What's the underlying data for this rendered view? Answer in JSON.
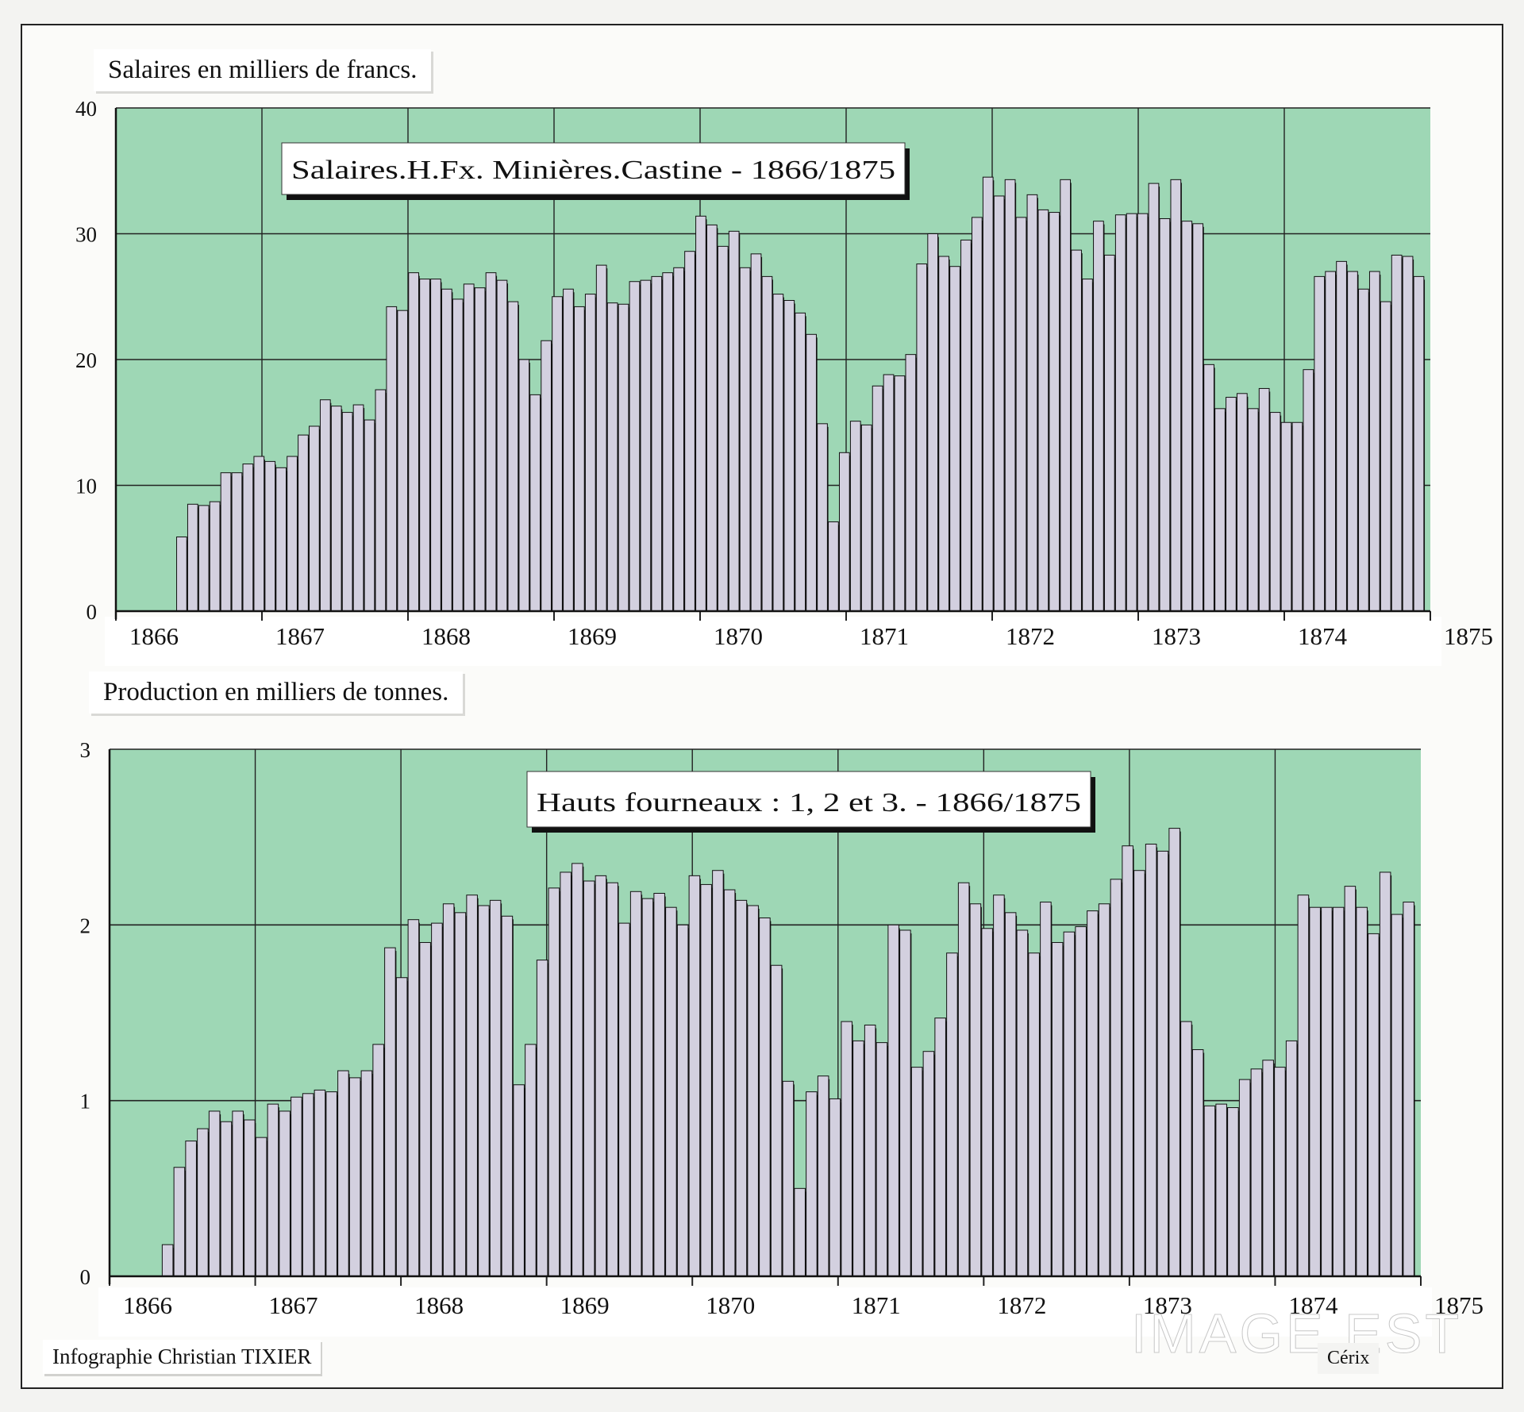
{
  "colors": {
    "plot_bg": "#9ed7b5",
    "bar_fill": "#d3d0df",
    "bar_stroke": "#111111",
    "grid": "#222222"
  },
  "footer": {
    "credit": "Infographie Christian TIXIER",
    "watermark": "IMAGE EST",
    "corner_text": "Cérix"
  },
  "chart_data": [
    {
      "type": "bar",
      "panel_title": "Salaires en milliers de francs.",
      "title": "Salaires.H.Fx. Minières.Castine - 1866/1875",
      "ylabel": "Salaires en milliers de francs.",
      "ylim": [
        0,
        40
      ],
      "yticks": [
        0,
        10,
        20,
        30,
        40
      ],
      "xticks": [
        "1866",
        "1867",
        "1868",
        "1869",
        "1870",
        "1871",
        "1872",
        "1873",
        "1874",
        "1875"
      ],
      "x_start": "1866-01",
      "frequency": "monthly",
      "grid": true,
      "values": [
        0,
        0,
        0,
        0,
        0,
        5.9,
        8.5,
        8.4,
        8.7,
        11,
        11,
        11.7,
        12.3,
        11.9,
        11.4,
        12.3,
        14,
        14.7,
        16.8,
        16.3,
        15.8,
        16.4,
        15.2,
        17.6,
        24.2,
        23.9,
        26.9,
        26.4,
        26.4,
        25.6,
        24.8,
        26,
        25.7,
        26.9,
        26.3,
        24.6,
        20,
        17.2,
        21.5,
        25,
        25.6,
        24.2,
        25.2,
        27.5,
        24.5,
        24.4,
        26.2,
        26.3,
        26.6,
        26.9,
        27.3,
        28.6,
        31.4,
        30.7,
        29,
        30.2,
        27.3,
        28.4,
        26.6,
        25.2,
        24.7,
        23.7,
        22,
        14.9,
        7.1,
        12.6,
        15.1,
        14.8,
        17.9,
        18.8,
        18.7,
        20.4,
        27.6,
        30,
        28.2,
        27.4,
        29.5,
        31.3,
        34.5,
        33,
        34.3,
        31.3,
        33.1,
        31.9,
        31.7,
        34.3,
        28.7,
        26.4,
        31,
        28.3,
        31.5,
        31.6,
        31.6,
        34,
        31.2,
        34.3,
        31,
        30.8,
        19.6,
        16.1,
        17,
        17.3,
        16.1,
        17.7,
        15.8,
        15,
        15,
        19.2,
        26.6,
        27,
        27.8,
        27,
        25.6,
        27,
        24.6,
        28.3,
        28.2,
        26.6
      ]
    },
    {
      "type": "bar",
      "panel_title": "Production en milliers de tonnes.",
      "title": "Hauts fourneaux : 1, 2 et 3. - 1866/1875",
      "ylabel": "Production en milliers de tonnes.",
      "ylim": [
        0,
        3
      ],
      "yticks": [
        0,
        1,
        2,
        3
      ],
      "xticks": [
        "1866",
        "1867",
        "1868",
        "1869",
        "1870",
        "1871",
        "1872",
        "1873",
        "1874",
        "1875"
      ],
      "x_start": "1866-01",
      "frequency": "monthly",
      "grid": true,
      "values": [
        0,
        0,
        0,
        0,
        0.18,
        0.62,
        0.77,
        0.84,
        0.94,
        0.88,
        0.94,
        0.89,
        0.79,
        0.98,
        0.94,
        1.02,
        1.04,
        1.06,
        1.05,
        1.17,
        1.13,
        1.17,
        1.32,
        1.87,
        1.7,
        2.03,
        1.9,
        2.01,
        2.12,
        2.07,
        2.17,
        2.11,
        2.14,
        2.05,
        1.09,
        1.32,
        1.8,
        2.21,
        2.3,
        2.35,
        2.25,
        2.28,
        2.24,
        2.01,
        2.19,
        2.15,
        2.18,
        2.1,
        2.0,
        2.28,
        2.23,
        2.31,
        2.2,
        2.14,
        2.11,
        2.04,
        1.77,
        1.11,
        0.5,
        1.05,
        1.14,
        1.01,
        1.45,
        1.34,
        1.43,
        1.33,
        2.0,
        1.97,
        1.19,
        1.28,
        1.47,
        1.84,
        2.24,
        2.12,
        1.98,
        2.17,
        2.07,
        1.97,
        1.84,
        2.13,
        1.9,
        1.96,
        1.99,
        2.08,
        2.12,
        2.26,
        2.45,
        2.31,
        2.46,
        2.42,
        2.55,
        1.45,
        1.29,
        0.97,
        0.98,
        0.96,
        1.12,
        1.18,
        1.23,
        1.19,
        1.34,
        2.17,
        2.1,
        2.1,
        2.1,
        2.22,
        2.1,
        1.95,
        2.3,
        2.06,
        2.13
      ]
    }
  ]
}
